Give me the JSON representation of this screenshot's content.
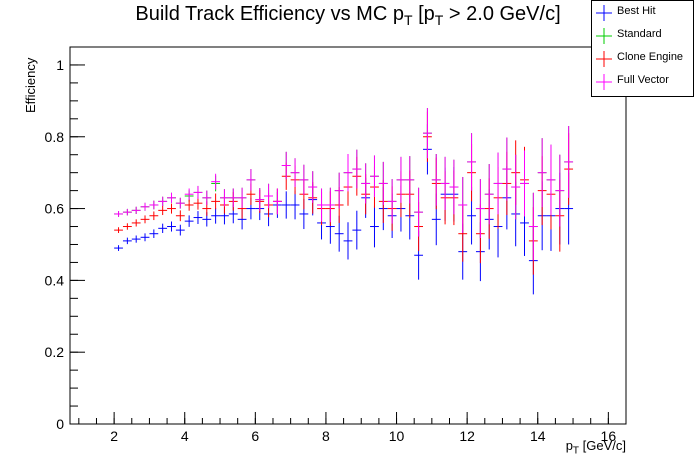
{
  "chart_data": {
    "type": "scatter",
    "title_main": "Build Track Efficiency vs MC p",
    "title_sub1": "T",
    "title_mid": " [p",
    "title_sub2": "T",
    "title_end": " > 2.0 GeV/c]",
    "xlabel_main": "p",
    "xlabel_sub": "T",
    "xlabel_end": " [GeV/c]",
    "ylabel": "Efficiency",
    "xlim": [
      0.75,
      16.5
    ],
    "ylim": [
      0,
      1.05
    ],
    "x_ticks": [
      2,
      4,
      6,
      8,
      10,
      12,
      14,
      16
    ],
    "y_ticks": [
      0,
      0.2,
      0.4,
      0.6,
      0.8,
      1
    ],
    "x_tick_labels": [
      "2",
      "4",
      "6",
      "8",
      "10",
      "12",
      "14",
      "16"
    ],
    "y_tick_labels": [
      "0",
      "0.2",
      "0.4",
      "0.6",
      "0.8",
      "1"
    ],
    "legend_position": "top-right",
    "series": [
      {
        "name": "Best Hit",
        "color": "#0000ff",
        "x": [
          2.125,
          2.375,
          2.625,
          2.875,
          3.125,
          3.375,
          3.625,
          3.875,
          4.125,
          4.375,
          4.625,
          4.875,
          5.125,
          5.375,
          5.625,
          5.875,
          6.125,
          6.375,
          6.625,
          6.875,
          7.125,
          7.375,
          7.625,
          7.875,
          8.125,
          8.375,
          8.625,
          8.875,
          9.125,
          9.375,
          9.625,
          9.875,
          10.125,
          10.375,
          10.625,
          10.875,
          11.125,
          11.375,
          11.625,
          11.875,
          12.125,
          12.375,
          12.625,
          12.875,
          13.125,
          13.375,
          13.625,
          13.875,
          14.125,
          14.375,
          14.625,
          14.875
        ],
        "y": [
          0.49,
          0.51,
          0.515,
          0.52,
          0.53,
          0.545,
          0.55,
          0.54,
          0.565,
          0.575,
          0.57,
          0.58,
          0.58,
          0.585,
          0.57,
          0.6,
          0.6,
          0.585,
          0.61,
          0.61,
          0.61,
          0.585,
          0.625,
          0.56,
          0.55,
          0.53,
          0.51,
          0.54,
          0.63,
          0.55,
          0.6,
          0.58,
          0.6,
          0.58,
          0.47,
          0.765,
          0.57,
          0.64,
          0.64,
          0.48,
          0.58,
          0.48,
          0.57,
          0.55,
          0.63,
          0.585,
          0.56,
          0.455,
          0.58,
          0.58,
          0.6,
          0.6
        ],
        "err": [
          0.008,
          0.009,
          0.01,
          0.011,
          0.012,
          0.013,
          0.014,
          0.015,
          0.016,
          0.018,
          0.02,
          0.022,
          0.024,
          0.026,
          0.028,
          0.03,
          0.032,
          0.034,
          0.036,
          0.038,
          0.04,
          0.042,
          0.044,
          0.046,
          0.048,
          0.05,
          0.052,
          0.054,
          0.056,
          0.058,
          0.06,
          0.062,
          0.064,
          0.066,
          0.068,
          0.07,
          0.072,
          0.074,
          0.076,
          0.078,
          0.08,
          0.082,
          0.084,
          0.086,
          0.088,
          0.09,
          0.092,
          0.094,
          0.096,
          0.098,
          0.1,
          0.1
        ]
      },
      {
        "name": "Standard",
        "color": "#00cc00",
        "x": [
          2.125,
          2.375,
          2.625,
          2.875,
          3.125,
          3.375,
          3.625,
          3.875,
          4.125,
          4.375,
          4.625,
          4.875,
          5.125,
          5.375,
          5.625,
          5.875,
          6.125,
          6.375,
          6.625,
          6.875,
          7.125,
          7.375,
          7.625,
          7.875,
          8.125,
          8.375,
          8.625,
          8.875,
          9.125,
          9.375,
          9.625,
          9.875,
          10.125,
          10.375,
          10.625,
          10.875,
          11.125,
          11.375,
          11.625,
          11.875,
          12.125,
          12.375,
          12.625,
          12.875,
          13.125,
          13.375,
          13.625,
          13.875,
          14.125,
          14.375,
          14.625,
          14.875
        ],
        "y": [
          0.585,
          0.59,
          0.595,
          0.605,
          0.61,
          0.62,
          0.63,
          0.615,
          0.635,
          0.645,
          0.63,
          0.67,
          0.63,
          0.63,
          0.63,
          0.68,
          0.625,
          0.635,
          0.62,
          0.72,
          0.7,
          0.68,
          0.66,
          0.61,
          0.61,
          0.65,
          0.7,
          0.71,
          0.67,
          0.69,
          0.67,
          0.62,
          0.68,
          0.68,
          0.59,
          0.81,
          0.68,
          0.67,
          0.66,
          0.61,
          0.73,
          0.6,
          0.64,
          0.67,
          0.71,
          0.66,
          0.67,
          0.55,
          0.7,
          0.68,
          0.65,
          0.73
        ],
        "err": [
          0.008,
          0.009,
          0.01,
          0.011,
          0.012,
          0.013,
          0.014,
          0.015,
          0.016,
          0.018,
          0.02,
          0.022,
          0.024,
          0.026,
          0.028,
          0.03,
          0.032,
          0.034,
          0.036,
          0.038,
          0.04,
          0.042,
          0.044,
          0.046,
          0.048,
          0.05,
          0.052,
          0.054,
          0.056,
          0.058,
          0.06,
          0.062,
          0.064,
          0.066,
          0.068,
          0.07,
          0.072,
          0.074,
          0.076,
          0.078,
          0.08,
          0.082,
          0.084,
          0.086,
          0.088,
          0.09,
          0.092,
          0.094,
          0.096,
          0.098,
          0.1,
          0.1
        ]
      },
      {
        "name": "Clone Engine",
        "color": "#ff0000",
        "x": [
          2.125,
          2.375,
          2.625,
          2.875,
          3.125,
          3.375,
          3.625,
          3.875,
          4.125,
          4.375,
          4.625,
          4.875,
          5.125,
          5.375,
          5.625,
          5.875,
          6.125,
          6.375,
          6.625,
          6.875,
          7.125,
          7.375,
          7.625,
          7.875,
          8.125,
          8.375,
          8.625,
          8.875,
          9.125,
          9.375,
          9.625,
          9.875,
          10.125,
          10.375,
          10.625,
          10.875,
          11.125,
          11.375,
          11.625,
          11.875,
          12.125,
          12.375,
          12.625,
          12.875,
          13.125,
          13.375,
          13.625,
          13.875,
          14.125,
          14.375,
          14.625,
          14.875
        ],
        "y": [
          0.54,
          0.55,
          0.56,
          0.57,
          0.58,
          0.595,
          0.6,
          0.58,
          0.61,
          0.615,
          0.6,
          0.62,
          0.61,
          0.62,
          0.6,
          0.64,
          0.62,
          0.61,
          0.62,
          0.69,
          0.68,
          0.64,
          0.63,
          0.6,
          0.6,
          0.61,
          0.66,
          0.69,
          0.64,
          0.66,
          0.62,
          0.6,
          0.64,
          0.64,
          0.55,
          0.8,
          0.67,
          0.63,
          0.63,
          0.53,
          0.7,
          0.53,
          0.6,
          0.63,
          0.67,
          0.7,
          0.68,
          0.51,
          0.65,
          0.64,
          0.58,
          0.71
        ],
        "err": [
          0.008,
          0.009,
          0.01,
          0.011,
          0.012,
          0.013,
          0.014,
          0.015,
          0.016,
          0.018,
          0.02,
          0.022,
          0.024,
          0.026,
          0.028,
          0.03,
          0.032,
          0.034,
          0.036,
          0.038,
          0.04,
          0.042,
          0.044,
          0.046,
          0.048,
          0.05,
          0.052,
          0.054,
          0.056,
          0.058,
          0.06,
          0.062,
          0.064,
          0.066,
          0.068,
          0.07,
          0.072,
          0.074,
          0.076,
          0.078,
          0.08,
          0.082,
          0.084,
          0.086,
          0.088,
          0.09,
          0.092,
          0.094,
          0.096,
          0.098,
          0.1,
          0.1
        ]
      },
      {
        "name": "Full Vector",
        "color": "#ff00ff",
        "x": [
          2.125,
          2.375,
          2.625,
          2.875,
          3.125,
          3.375,
          3.625,
          3.875,
          4.125,
          4.375,
          4.625,
          4.875,
          5.125,
          5.375,
          5.625,
          5.875,
          6.125,
          6.375,
          6.625,
          6.875,
          7.125,
          7.375,
          7.625,
          7.875,
          8.125,
          8.375,
          8.625,
          8.875,
          9.125,
          9.375,
          9.625,
          9.875,
          10.125,
          10.375,
          10.625,
          10.875,
          11.125,
          11.375,
          11.625,
          11.875,
          12.125,
          12.375,
          12.625,
          12.875,
          13.125,
          13.375,
          13.625,
          13.875,
          14.125,
          14.375,
          14.625,
          14.875
        ],
        "y": [
          0.585,
          0.59,
          0.595,
          0.605,
          0.61,
          0.62,
          0.63,
          0.615,
          0.64,
          0.645,
          0.63,
          0.675,
          0.63,
          0.63,
          0.63,
          0.68,
          0.625,
          0.635,
          0.62,
          0.72,
          0.7,
          0.68,
          0.66,
          0.61,
          0.61,
          0.65,
          0.7,
          0.71,
          0.67,
          0.69,
          0.67,
          0.62,
          0.68,
          0.68,
          0.59,
          0.81,
          0.68,
          0.67,
          0.66,
          0.61,
          0.73,
          0.6,
          0.64,
          0.67,
          0.71,
          0.66,
          0.67,
          0.55,
          0.7,
          0.68,
          0.65,
          0.73
        ],
        "err": [
          0.008,
          0.009,
          0.01,
          0.011,
          0.012,
          0.013,
          0.014,
          0.015,
          0.016,
          0.018,
          0.02,
          0.022,
          0.024,
          0.026,
          0.028,
          0.03,
          0.032,
          0.034,
          0.036,
          0.038,
          0.04,
          0.042,
          0.044,
          0.046,
          0.048,
          0.05,
          0.052,
          0.054,
          0.056,
          0.058,
          0.06,
          0.062,
          0.064,
          0.066,
          0.068,
          0.07,
          0.072,
          0.074,
          0.076,
          0.078,
          0.08,
          0.082,
          0.084,
          0.086,
          0.088,
          0.09,
          0.092,
          0.094,
          0.096,
          0.098,
          0.1,
          0.1
        ]
      }
    ]
  }
}
